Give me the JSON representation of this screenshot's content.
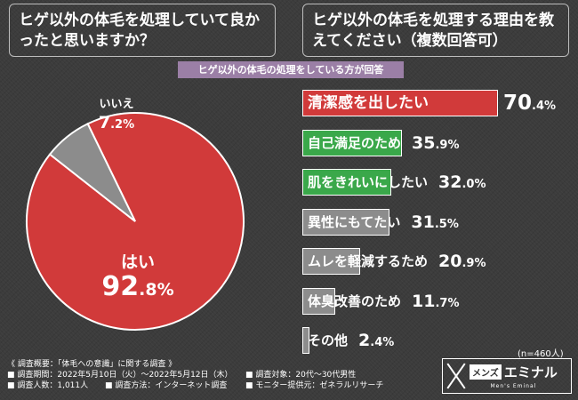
{
  "left_question": "ヒゲ以外の体毛を処理していて良かったと思いますか？",
  "right_question": "ヒゲ以外の体毛を処理する理由を教えてください（複数回答可）",
  "sub_label": "ヒゲ以外の体毛の処理をしている方が回答",
  "sample_size": "(n=460人)",
  "colors": {
    "red": "#d13a3a",
    "green": "#3aa84a",
    "gray": "#8c8c8c"
  },
  "chart_data": [
    {
      "type": "pie",
      "slices": [
        {
          "label": "はい",
          "value": 92.8,
          "display_int": "92",
          "display_dec": ".8%",
          "color": "#d13a3a"
        },
        {
          "label": "いいえ",
          "value": 7.2,
          "display_int": "7",
          "display_dec": ".2%",
          "color": "#8c8c8c"
        }
      ]
    },
    {
      "type": "bar",
      "orientation": "horizontal",
      "xlim": [
        0,
        70.4
      ],
      "categories": [
        "清潔感を出したい",
        "自己満足のため",
        "肌をきれいにしたい",
        "異性にもてたい",
        "ムレを軽減するため",
        "体臭改善のため",
        "その他"
      ],
      "values": [
        70.4,
        35.9,
        32.0,
        31.5,
        20.9,
        11.7,
        2.4
      ],
      "display_int": [
        "70",
        "35",
        "32",
        "31",
        "20",
        "11",
        "2"
      ],
      "display_dec": [
        ".4%",
        ".9%",
        ".0%",
        ".5%",
        ".9%",
        ".7%",
        ".4%"
      ],
      "colors": [
        "#d13a3a",
        "#3aa84a",
        "#3aa84a",
        "#8c8c8c",
        "#8c8c8c",
        "#8c8c8c",
        "#8c8c8c"
      ]
    }
  ],
  "footer": {
    "title": "《 調査概要：「体毛への意識」に関する調査 》",
    "period": "■ 調査期間：2022年5月10日（火）～2022年5月12日（木）",
    "target": "■ 調査対象：20代～30代男性",
    "count": "■ 調査人数：1,011人",
    "method": "■ 調査方法：インターネット調査",
    "provider": "■ モニター提供元：ゼネラルリサーチ"
  },
  "logo": {
    "mens": "メンズ",
    "name": "エミナル",
    "sub": "Men's Eminal"
  }
}
